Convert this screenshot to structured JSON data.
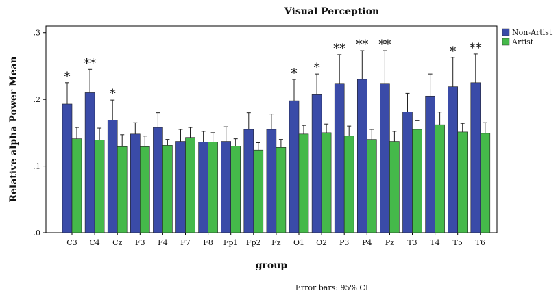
{
  "chart_data": {
    "type": "bar",
    "title": "Visual Perception",
    "xlabel": "group",
    "ylabel": "Relative alpha Power Mean",
    "ylim": [
      0,
      0.31
    ],
    "yticks": [
      ".0",
      ".1",
      ".2",
      ".3"
    ],
    "ytick_values": [
      0,
      0.1,
      0.2,
      0.3
    ],
    "categories": [
      "C3",
      "C4",
      "Cz",
      "F3",
      "F4",
      "F7",
      "F8",
      "Fp1",
      "Fp2",
      "Fz",
      "O1",
      "O2",
      "P3",
      "P4",
      "Pz",
      "T3",
      "T4",
      "T5",
      "T6"
    ],
    "series": [
      {
        "name": "Non-Artist",
        "color": "#3a4ba8",
        "values": [
          0.193,
          0.21,
          0.169,
          0.148,
          0.158,
          0.137,
          0.136,
          0.137,
          0.155,
          0.155,
          0.198,
          0.207,
          0.224,
          0.23,
          0.224,
          0.181,
          0.205,
          0.219,
          0.225
        ],
        "ci_upper": [
          0.225,
          0.245,
          0.199,
          0.165,
          0.18,
          0.155,
          0.152,
          0.159,
          0.18,
          0.178,
          0.23,
          0.238,
          0.267,
          0.273,
          0.273,
          0.209,
          0.238,
          0.263,
          0.268
        ]
      },
      {
        "name": "Artist",
        "color": "#45b94a",
        "values": [
          0.141,
          0.139,
          0.129,
          0.129,
          0.131,
          0.143,
          0.136,
          0.13,
          0.124,
          0.128,
          0.148,
          0.15,
          0.145,
          0.14,
          0.137,
          0.155,
          0.162,
          0.151,
          0.149
        ],
        "ci_upper": [
          0.158,
          0.157,
          0.147,
          0.145,
          0.14,
          0.158,
          0.15,
          0.141,
          0.135,
          0.14,
          0.161,
          0.163,
          0.16,
          0.155,
          0.152,
          0.168,
          0.181,
          0.164,
          0.165
        ]
      }
    ],
    "significance": [
      "*",
      "**",
      "*",
      "",
      "",
      "",
      "",
      "",
      "",
      "",
      "*",
      "*",
      "**",
      "**",
      "**",
      "",
      "",
      "*",
      "**"
    ],
    "legend_position": "top-right",
    "grid": false,
    "footnote": "Error bars: 95% CI"
  }
}
